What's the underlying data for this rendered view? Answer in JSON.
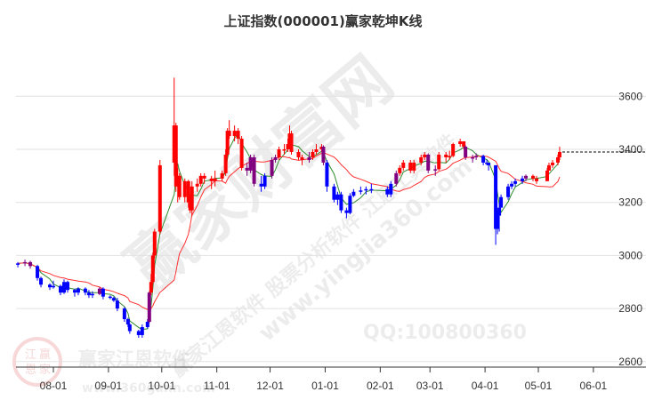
{
  "chart_data": {
    "type": "candlestick",
    "title": "上证指数(000001)赢家乾坤K线",
    "x_tick_labels": [
      "08-01",
      "09-01",
      "10-01",
      "11-01",
      "12-01",
      "01-01",
      "02-01",
      "03-01",
      "04-01",
      "05-01",
      "06-01"
    ],
    "y_tick_labels": [
      "2600",
      "2800",
      "3000",
      "3200",
      "3400",
      "3600"
    ],
    "ylim": [
      2600,
      3700
    ],
    "y_axis_position": "right",
    "grid": "horizontal",
    "last_price": 3390,
    "colors": {
      "r": "#ff0000",
      "b": "#0000ff",
      "p": "#800080",
      "ma_short": "#2e8b2e",
      "ma_long": "#ff3030"
    },
    "candle_fields": [
      "date",
      "open",
      "close",
      "high",
      "low",
      "signal"
    ],
    "candles": [
      [
        "07-12",
        2965,
        2970,
        2975,
        2955,
        "b"
      ],
      [
        "07-16",
        2970,
        2975,
        2985,
        2960,
        "p"
      ],
      [
        "07-19",
        2975,
        2960,
        2980,
        2950,
        "p"
      ],
      [
        "07-23",
        2960,
        2915,
        2965,
        2905,
        "b"
      ],
      [
        "07-25",
        2915,
        2890,
        2920,
        2880,
        "b"
      ],
      [
        "07-30",
        2890,
        2880,
        2895,
        2870,
        "b"
      ],
      [
        "08-01",
        2880,
        2885,
        2905,
        2875,
        "b"
      ],
      [
        "08-05",
        2885,
        2860,
        2890,
        2850,
        "b"
      ],
      [
        "08-07",
        2860,
        2900,
        2910,
        2855,
        "b"
      ],
      [
        "08-09",
        2900,
        2870,
        2905,
        2860,
        "b"
      ],
      [
        "08-13",
        2870,
        2860,
        2875,
        2845,
        "b"
      ],
      [
        "08-15",
        2860,
        2875,
        2880,
        2850,
        "b"
      ],
      [
        "08-19",
        2875,
        2860,
        2880,
        2850,
        "b"
      ],
      [
        "08-21",
        2860,
        2850,
        2870,
        2840,
        "b"
      ],
      [
        "08-23",
        2850,
        2855,
        2865,
        2840,
        "b"
      ],
      [
        "08-27",
        2855,
        2875,
        2880,
        2850,
        "p"
      ],
      [
        "08-29",
        2875,
        2845,
        2880,
        2835,
        "b"
      ],
      [
        "09-02",
        2845,
        2840,
        2850,
        2835,
        "b"
      ],
      [
        "09-04",
        2840,
        2830,
        2845,
        2825,
        "b"
      ],
      [
        "09-06",
        2830,
        2800,
        2840,
        2790,
        "b"
      ],
      [
        "09-10",
        2800,
        2760,
        2805,
        2750,
        "b"
      ],
      [
        "09-12",
        2760,
        2740,
        2765,
        2730,
        "b"
      ],
      [
        "09-13",
        2740,
        2715,
        2745,
        2705,
        "b"
      ],
      [
        "09-18",
        2715,
        2700,
        2720,
        2690,
        "b"
      ],
      [
        "09-20",
        2700,
        2730,
        2740,
        2690,
        "b"
      ],
      [
        "09-23",
        2730,
        2750,
        2760,
        2725,
        "b"
      ],
      [
        "09-24",
        2750,
        2860,
        2865,
        2745,
        "p"
      ],
      [
        "09-25",
        2860,
        2900,
        2930,
        2850,
        "r"
      ],
      [
        "09-26",
        2900,
        3000,
        3010,
        2890,
        "r"
      ],
      [
        "09-27",
        3000,
        3090,
        3100,
        2990,
        "r"
      ],
      [
        "09-30",
        3090,
        3340,
        3360,
        3080,
        "r"
      ],
      [
        "10-08",
        3350,
        3490,
        3670,
        3300,
        "r"
      ],
      [
        "10-09",
        3490,
        3260,
        3500,
        3240,
        "r"
      ],
      [
        "10-10",
        3260,
        3300,
        3330,
        3200,
        "r"
      ],
      [
        "10-11",
        3300,
        3220,
        3310,
        3210,
        "r"
      ],
      [
        "10-14",
        3220,
        3280,
        3290,
        3200,
        "r"
      ],
      [
        "10-16",
        3280,
        3200,
        3285,
        3180,
        "r"
      ],
      [
        "10-17",
        3200,
        3170,
        3230,
        3160,
        "r"
      ],
      [
        "10-18",
        3170,
        3260,
        3280,
        3150,
        "r"
      ],
      [
        "10-21",
        3260,
        3270,
        3290,
        3240,
        "r"
      ],
      [
        "10-23",
        3270,
        3300,
        3310,
        3260,
        "r"
      ],
      [
        "10-25",
        3300,
        3290,
        3310,
        3270,
        "r"
      ],
      [
        "10-29",
        3290,
        3280,
        3300,
        3250,
        "r"
      ],
      [
        "10-31",
        3280,
        3290,
        3320,
        3260,
        "r"
      ],
      [
        "11-04",
        3290,
        3310,
        3320,
        3280,
        "r"
      ],
      [
        "11-06",
        3310,
        3380,
        3400,
        3300,
        "r"
      ],
      [
        "11-07",
        3380,
        3470,
        3480,
        3370,
        "r"
      ],
      [
        "11-08",
        3470,
        3450,
        3510,
        3440,
        "r"
      ],
      [
        "11-11",
        3450,
        3470,
        3490,
        3430,
        "r"
      ],
      [
        "11-13",
        3470,
        3440,
        3480,
        3420,
        "r"
      ],
      [
        "11-15",
        3440,
        3330,
        3450,
        3320,
        "r"
      ],
      [
        "11-18",
        3330,
        3320,
        3350,
        3300,
        "p"
      ],
      [
        "11-20",
        3320,
        3370,
        3380,
        3310,
        "p"
      ],
      [
        "11-22",
        3370,
        3270,
        3380,
        3260,
        "p"
      ],
      [
        "11-26",
        3270,
        3260,
        3300,
        3240,
        "b"
      ],
      [
        "11-28",
        3260,
        3300,
        3310,
        3250,
        "b"
      ],
      [
        "12-02",
        3300,
        3360,
        3370,
        3290,
        "p"
      ],
      [
        "12-04",
        3360,
        3370,
        3380,
        3350,
        "p"
      ],
      [
        "12-06",
        3370,
        3400,
        3410,
        3360,
        "r"
      ],
      [
        "12-09",
        3400,
        3400,
        3420,
        3380,
        "r"
      ],
      [
        "12-11",
        3400,
        3420,
        3440,
        3390,
        "r"
      ],
      [
        "12-12",
        3420,
        3460,
        3490,
        3410,
        "r"
      ],
      [
        "12-13",
        3460,
        3390,
        3470,
        3380,
        "r"
      ],
      [
        "12-17",
        3390,
        3370,
        3400,
        3360,
        "r"
      ],
      [
        "12-19",
        3370,
        3360,
        3380,
        3340,
        "r"
      ],
      [
        "12-23",
        3360,
        3370,
        3390,
        3350,
        "p"
      ],
      [
        "12-25",
        3370,
        3390,
        3400,
        3360,
        "r"
      ],
      [
        "12-27",
        3390,
        3400,
        3420,
        3380,
        "r"
      ],
      [
        "12-30",
        3400,
        3410,
        3420,
        3390,
        "r"
      ],
      [
        "12-31",
        3410,
        3350,
        3415,
        3340,
        "p"
      ],
      [
        "01-02",
        3350,
        3260,
        3360,
        3240,
        "b"
      ],
      [
        "01-06",
        3260,
        3210,
        3270,
        3200,
        "b"
      ],
      [
        "01-08",
        3210,
        3230,
        3240,
        3190,
        "b"
      ],
      [
        "01-10",
        3230,
        3170,
        3240,
        3160,
        "b"
      ],
      [
        "01-13",
        3170,
        3160,
        3180,
        3140,
        "b"
      ],
      [
        "01-15",
        3160,
        3225,
        3235,
        3155,
        "b"
      ],
      [
        "01-17",
        3225,
        3240,
        3250,
        3220,
        "b"
      ],
      [
        "01-21",
        3240,
        3245,
        3260,
        3230,
        "b"
      ],
      [
        "01-24",
        3245,
        3250,
        3260,
        3230,
        "b"
      ],
      [
        "01-27",
        3250,
        3250,
        3270,
        3235,
        "b"
      ],
      [
        "02-05",
        3250,
        3230,
        3260,
        3220,
        "b"
      ],
      [
        "02-07",
        3230,
        3270,
        3280,
        3220,
        "b"
      ],
      [
        "02-10",
        3270,
        3310,
        3320,
        3260,
        "p"
      ],
      [
        "02-12",
        3310,
        3330,
        3340,
        3300,
        "r"
      ],
      [
        "02-14",
        3330,
        3350,
        3360,
        3320,
        "r"
      ],
      [
        "02-18",
        3350,
        3320,
        3360,
        3310,
        "r"
      ],
      [
        "02-20",
        3320,
        3350,
        3360,
        3310,
        "r"
      ],
      [
        "02-24",
        3350,
        3370,
        3380,
        3340,
        "r"
      ],
      [
        "02-26",
        3370,
        3380,
        3390,
        3360,
        "r"
      ],
      [
        "02-28",
        3380,
        3320,
        3385,
        3310,
        "p"
      ],
      [
        "03-04",
        3320,
        3325,
        3340,
        3300,
        "p"
      ],
      [
        "03-06",
        3325,
        3380,
        3390,
        3320,
        "r"
      ],
      [
        "03-10",
        3380,
        3370,
        3390,
        3350,
        "r"
      ],
      [
        "03-12",
        3370,
        3375,
        3395,
        3360,
        "r"
      ],
      [
        "03-14",
        3375,
        3420,
        3425,
        3370,
        "r"
      ],
      [
        "03-18",
        3420,
        3430,
        3440,
        3410,
        "r"
      ],
      [
        "03-20",
        3430,
        3410,
        3430,
        3400,
        "r"
      ],
      [
        "03-21",
        3410,
        3370,
        3415,
        3360,
        "p"
      ],
      [
        "03-25",
        3370,
        3370,
        3380,
        3350,
        "p"
      ],
      [
        "03-27",
        3370,
        3375,
        3385,
        3360,
        "p"
      ],
      [
        "03-31",
        3375,
        3350,
        3380,
        3340,
        "b"
      ],
      [
        "04-02",
        3350,
        3350,
        3360,
        3340,
        "b"
      ],
      [
        "04-03",
        3350,
        3340,
        3350,
        3320,
        "b"
      ],
      [
        "04-07",
        3340,
        3100,
        3340,
        3040,
        "b"
      ],
      [
        "04-08",
        3100,
        3150,
        3170,
        3080,
        "b"
      ],
      [
        "04-09",
        3150,
        3180,
        3200,
        3090,
        "b"
      ],
      [
        "04-10",
        3180,
        3220,
        3230,
        3200,
        "b"
      ],
      [
        "04-14",
        3220,
        3260,
        3270,
        3210,
        "b"
      ],
      [
        "04-16",
        3260,
        3270,
        3280,
        3250,
        "b"
      ],
      [
        "04-18",
        3270,
        3280,
        3290,
        3260,
        "b"
      ],
      [
        "04-22",
        3280,
        3290,
        3300,
        3270,
        "b"
      ],
      [
        "04-24",
        3290,
        3300,
        3305,
        3280,
        "p"
      ],
      [
        "04-28",
        3300,
        3290,
        3305,
        3280,
        "r"
      ],
      [
        "04-30",
        3290,
        3280,
        3300,
        3270,
        "r"
      ],
      [
        "05-06",
        3280,
        3320,
        3330,
        3280,
        "r"
      ],
      [
        "05-07",
        3320,
        3340,
        3350,
        3320,
        "r"
      ],
      [
        "05-09",
        3340,
        3350,
        3360,
        3330,
        "r"
      ],
      [
        "05-12",
        3350,
        3370,
        3380,
        3340,
        "r"
      ],
      [
        "05-13",
        3370,
        3390,
        3410,
        3360,
        "r"
      ]
    ]
  },
  "watermarks": {
    "brand": "赢家财富网",
    "slogan": "赢家江恩软件 股票分析软件 江恩工具软件",
    "site": "www.yingjia360.com",
    "qq": "QQ:100800360",
    "logo_text": "赢家江恩软件",
    "logo_site": "www.360gann.com",
    "seal_chars": [
      "江",
      "赢",
      "恩",
      "家"
    ]
  }
}
